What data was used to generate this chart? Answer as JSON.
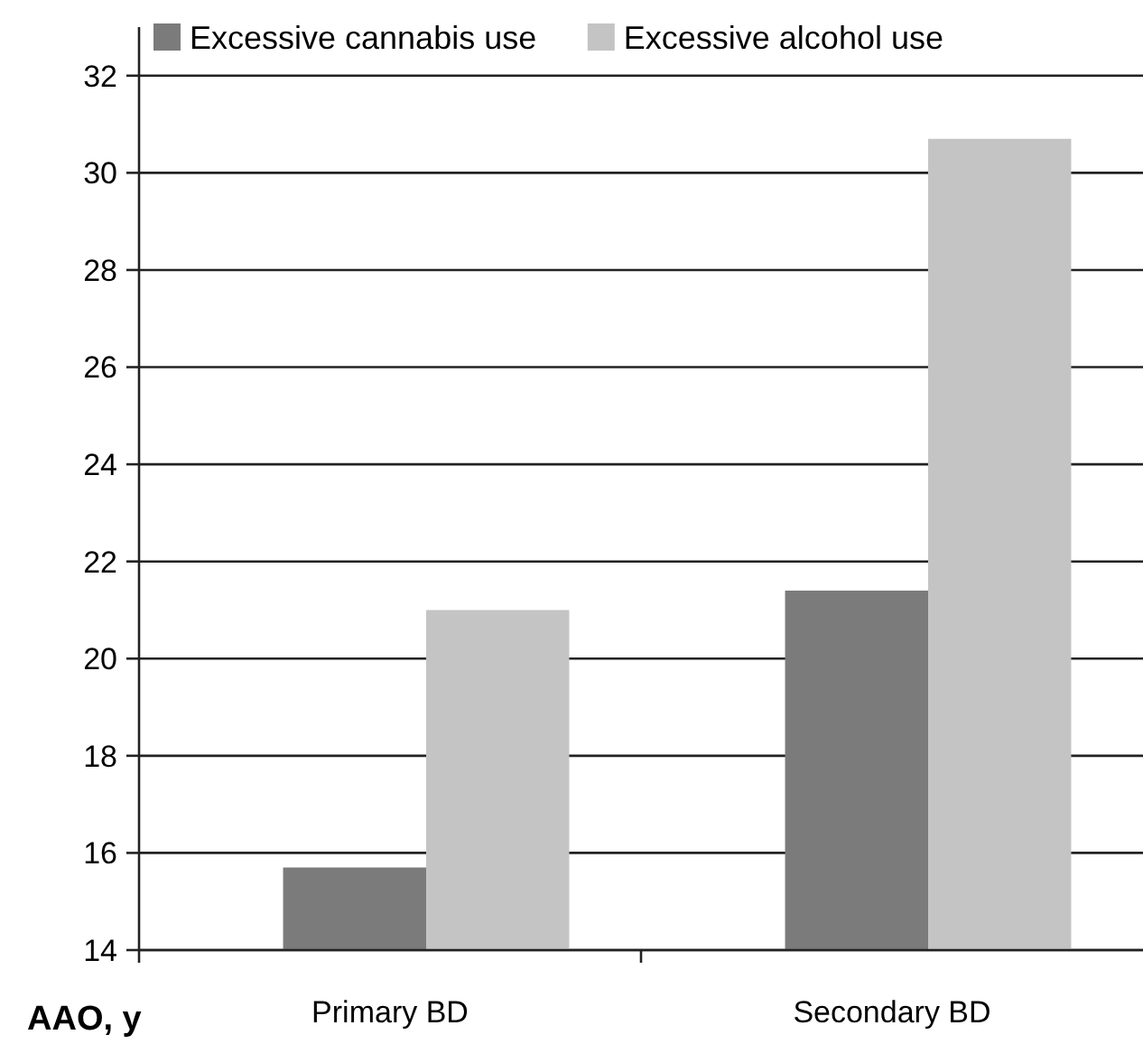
{
  "chart_data": {
    "type": "bar",
    "ylabel": "AAO, y",
    "categories": [
      "Primary BD",
      "Secondary BD"
    ],
    "series": [
      {
        "name": "Excessive cannabis use",
        "color": "#7b7b7b",
        "values": [
          15.7,
          21.4
        ]
      },
      {
        "name": "Excessive alcohol use",
        "color": "#c3c4c3",
        "values": [
          21.0,
          30.7
        ]
      }
    ],
    "ylim": [
      14,
      33
    ],
    "yticks": [
      14,
      16,
      18,
      20,
      22,
      24,
      26,
      28,
      30,
      32
    ],
    "grid": "y",
    "legend": "top"
  }
}
